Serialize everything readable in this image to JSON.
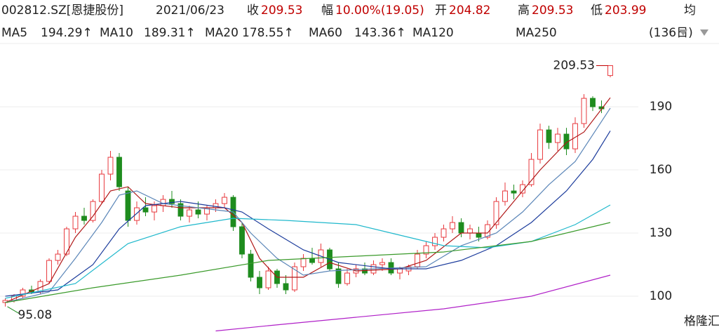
{
  "chart_data": {
    "type": "candlestick",
    "title": "002812.SZ[恩捷股份]",
    "date": "2021/06/23",
    "quote": [
      {
        "label": "收",
        "value": "209.53"
      },
      {
        "label": "幅",
        "value": "10.00%(19.05)"
      },
      {
        "label": "开",
        "value": "204.82"
      },
      {
        "label": "高",
        "value": "209.53"
      },
      {
        "label": "低",
        "value": "203.99"
      },
      {
        "label": "均",
        "value": ""
      }
    ],
    "period_label": "(136日)",
    "ylim": [
      83,
      220.7
    ],
    "yticks": [
      100,
      130,
      160,
      190
    ],
    "xlim": [
      -0.6,
      72.2
    ],
    "grid": true,
    "up_color": "#e8383d",
    "down_color": "#1e8c1e",
    "candles": [
      [
        97,
        99,
        95.08,
        98
      ],
      [
        98,
        101,
        97,
        100
      ],
      [
        100,
        104,
        99,
        103
      ],
      [
        103,
        105,
        101,
        102
      ],
      [
        102,
        108,
        101,
        107
      ],
      [
        107,
        118,
        106,
        117
      ],
      [
        117,
        122,
        115,
        120
      ],
      [
        120,
        133,
        119,
        132
      ],
      [
        132,
        140,
        130,
        138
      ],
      [
        138,
        142,
        134,
        136
      ],
      [
        136,
        146,
        135,
        145
      ],
      [
        145,
        160,
        144,
        158
      ],
      [
        158,
        169,
        155,
        166
      ],
      [
        166,
        168,
        150,
        152
      ],
      [
        150,
        152,
        133,
        136
      ],
      [
        136,
        145,
        134,
        142
      ],
      [
        142,
        147,
        138,
        140
      ],
      [
        140,
        145,
        136,
        143
      ],
      [
        143,
        148,
        140,
        146
      ],
      [
        146,
        150,
        142,
        144
      ],
      [
        144,
        146,
        136,
        138
      ],
      [
        138,
        143,
        135,
        141
      ],
      [
        141,
        145,
        137,
        139
      ],
      [
        139,
        143,
        136,
        142
      ],
      [
        142,
        146,
        140,
        144
      ],
      [
        144,
        149,
        142,
        147
      ],
      [
        147,
        148,
        131,
        133
      ],
      [
        133,
        135,
        118,
        120
      ],
      [
        120,
        122,
        107,
        109
      ],
      [
        109,
        112,
        101,
        104
      ],
      [
        104,
        114,
        103,
        112
      ],
      [
        112,
        113,
        104,
        106
      ],
      [
        106,
        110,
        101,
        103
      ],
      [
        103,
        116,
        102,
        114
      ],
      [
        114,
        120,
        112,
        118
      ],
      [
        118,
        123,
        115,
        116
      ],
      [
        116,
        125,
        114,
        122
      ],
      [
        122,
        123,
        112,
        113
      ],
      [
        113,
        116,
        104,
        106
      ],
      [
        106,
        113,
        105,
        111
      ],
      [
        111,
        115,
        109,
        113
      ],
      [
        113,
        116,
        110,
        111
      ],
      [
        111,
        117,
        110,
        115
      ],
      [
        115,
        118,
        112,
        116
      ],
      [
        116,
        118,
        110,
        111
      ],
      [
        111,
        114,
        108,
        113
      ],
      [
        112,
        115,
        110,
        114
      ],
      [
        114,
        122,
        113,
        120
      ],
      [
        120,
        126,
        118,
        124
      ],
      [
        124,
        130,
        122,
        128
      ],
      [
        128,
        134,
        126,
        132
      ],
      [
        132,
        138,
        130,
        135
      ],
      [
        135,
        137,
        128,
        130
      ],
      [
        130,
        134,
        127,
        132
      ],
      [
        130,
        133,
        126,
        128
      ],
      [
        128,
        136,
        127,
        134
      ],
      [
        134,
        147,
        132,
        145
      ],
      [
        145,
        154,
        143,
        150
      ],
      [
        150,
        153,
        146,
        149
      ],
      [
        149,
        155,
        147,
        153
      ],
      [
        153,
        168,
        152,
        165
      ],
      [
        165,
        182,
        163,
        179
      ],
      [
        179,
        181,
        170,
        173
      ],
      [
        173,
        180,
        169,
        177
      ],
      [
        177,
        180,
        167,
        170
      ],
      [
        170,
        185,
        168,
        182
      ],
      [
        182,
        196,
        180,
        194
      ],
      [
        194,
        195,
        188,
        190
      ],
      [
        190,
        193,
        187,
        189
      ],
      [
        204.82,
        209.53,
        203.99,
        209.53
      ]
    ],
    "series": [
      {
        "name": "MA5",
        "color": "#b01818",
        "value_label": "194.29↑",
        "x": [
          0,
          5,
          8,
          10,
          12,
          14,
          16,
          20,
          25,
          27,
          29,
          31,
          34,
          37,
          40,
          45,
          48,
          52,
          55,
          58,
          61,
          64,
          66,
          69
        ],
        "values": [
          97,
          106,
          128,
          138,
          150,
          152,
          144,
          142,
          142,
          135,
          118,
          109,
          109,
          116,
          112,
          113,
          117,
          130,
          130,
          145,
          160,
          173,
          178,
          194.29
        ]
      },
      {
        "name": "MA10",
        "color": "#5b86b8",
        "value_label": "189.31↑",
        "x": [
          0,
          5,
          8,
          11,
          13,
          15,
          18,
          22,
          26,
          28,
          31,
          34,
          37,
          42,
          48,
          52,
          56,
          59,
          62,
          65,
          69
        ],
        "values": [
          97,
          102,
          118,
          135,
          148,
          150,
          144,
          142,
          140,
          130,
          118,
          110,
          112,
          113,
          114,
          124,
          130,
          140,
          153,
          164,
          189.31
        ]
      },
      {
        "name": "MA20",
        "color": "#1c3c9c",
        "value_label": "178.55↑",
        "x": [
          0,
          6,
          10,
          13,
          16,
          20,
          25,
          27,
          30,
          34,
          38,
          44,
          48,
          52,
          56,
          60,
          64,
          67,
          69
        ],
        "values": [
          100,
          103,
          115,
          132,
          143,
          145,
          142,
          140,
          132,
          122,
          116,
          113,
          113,
          117,
          124,
          135,
          150,
          165,
          178.55
        ]
      },
      {
        "name": "MA60",
        "color": "#1fb8cc",
        "value_label": "143.36↑",
        "x": [
          0,
          8,
          14,
          20,
          26,
          32,
          40,
          46,
          50,
          55,
          60,
          65,
          69
        ],
        "values": [
          99,
          106,
          125,
          133,
          137,
          136,
          134,
          128,
          124,
          123,
          126,
          134,
          143.36
        ]
      },
      {
        "name": "MA120",
        "color": "#3a9a2a",
        "x": [
          0,
          10,
          20,
          30,
          40,
          50,
          60,
          69
        ],
        "values": [
          97,
          104,
          110,
          117,
          119,
          121,
          126,
          135
        ]
      },
      {
        "name": "MA250",
        "color": "#b020c8",
        "x": [
          24,
          30,
          40,
          50,
          60,
          69
        ],
        "values": [
          83.5,
          86,
          90,
          94,
          100,
          110
        ]
      }
    ],
    "annotations": [
      {
        "text": "209.53",
        "index": 69,
        "value": 209.53,
        "color": "#c00000"
      },
      {
        "text": "95.08",
        "index": 0,
        "value": 95.08,
        "color": "#1e8c1e"
      }
    ],
    "watermark": "格隆汇"
  }
}
